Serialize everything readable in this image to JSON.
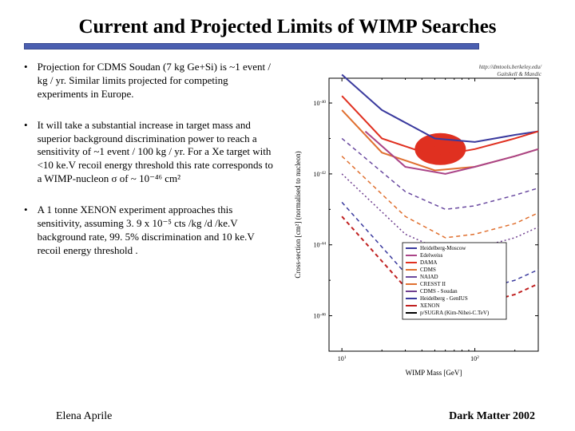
{
  "title": "Current and Projected Limits of WIMP Searches",
  "title_fontsize": 25,
  "underline_color": "#4b5fb0",
  "bullets": [
    {
      "text": "Projection for CDMS Soudan (7 kg Ge+Si) is ~1 event / kg / yr.  Similar limits projected for competing experiments in Europe."
    },
    {
      "text": "It will take a substantial increase in target mass and superior background discrimination power to reach a sensitivity of ~1 event / 100 kg / yr. For a Xe target with <10 ke.V recoil energy threshold this rate corresponds to a WIMP-nucleon σ of ~ 10⁻⁴⁶ cm²"
    },
    {
      "text": "A 1 tonne  XENON experiment approaches this sensitivity, assuming 3. 9 x 10⁻⁵ cts /kg /d /ke.V background rate,  99. 5% discrimination and 10 ke.V recoil energy threshold ."
    }
  ],
  "bullet_fontsize": 13,
  "footer_left": "Elena Aprile",
  "footer_right": "Dark Matter 2002",
  "chart": {
    "type": "line",
    "source_label": "http://dmtools.berkeley.edu/",
    "source_author": "Gaitskell & Mandic",
    "xlabel": "WIMP Mass  [GeV]",
    "ylabel": "Cross-section  [cm²]  (normalised to nucleon)",
    "xscale": "log",
    "yscale": "log",
    "xlim": [
      8,
      300
    ],
    "ylim": [
      1e-47,
      5e-40
    ],
    "xticks": [
      10,
      100
    ],
    "yticks_exp": [
      -40,
      -42,
      -44,
      -46
    ],
    "label_fontsize": 9,
    "tick_fontsize": 8,
    "background_color": "#ffffff",
    "border_color": "#000000",
    "legend": {
      "position": "lower-right",
      "items": [
        {
          "label": "Heidelberg-Moscow",
          "color": "#3a3a9e"
        },
        {
          "label": "Edelweiss",
          "color": "#aa4488"
        },
        {
          "label": "DAMA",
          "color": "#e03020"
        },
        {
          "label": "CDMS",
          "color": "#e07030"
        },
        {
          "label": "NAIAD",
          "color": "#6a4aa0"
        },
        {
          "label": "CRESST II",
          "color": "#e07030"
        },
        {
          "label": "CDMS - Soudan",
          "color": "#704090"
        },
        {
          "label": "Heidelberg - GenIUS",
          "color": "#3a3a9e"
        },
        {
          "label": "XENON",
          "color": "#c02020"
        },
        {
          "label": "p/SUGRA (Kim-Nihei-C.TeV)",
          "color": "#000000"
        }
      ],
      "box_border": "#000000",
      "font_size": 7
    },
    "allowed_region": {
      "color": "#e03020",
      "opacity": 1.0,
      "x_center": 55,
      "y_center_exp": -41.3,
      "note": "DAMA allowed region"
    },
    "curves": [
      {
        "name": "Heidelberg-Moscow",
        "color": "#3a3a9e",
        "style": "solid",
        "width": 2,
        "points_exp": [
          [
            10,
            -39.2
          ],
          [
            20,
            -40.2
          ],
          [
            50,
            -41.0
          ],
          [
            100,
            -41.1
          ],
          [
            200,
            -40.9
          ],
          [
            300,
            -40.8
          ]
        ]
      },
      {
        "name": "DAMA",
        "color": "#e03020",
        "style": "solid",
        "width": 2,
        "points_exp": [
          [
            10,
            -39.8
          ],
          [
            20,
            -41.0
          ],
          [
            50,
            -41.5
          ],
          [
            100,
            -41.3
          ],
          [
            200,
            -41.0
          ],
          [
            300,
            -40.8
          ]
        ]
      },
      {
        "name": "CDMS",
        "color": "#e07030",
        "style": "solid",
        "width": 2,
        "points_exp": [
          [
            10,
            -40.2
          ],
          [
            20,
            -41.4
          ],
          [
            50,
            -41.9
          ],
          [
            100,
            -41.8
          ],
          [
            200,
            -41.5
          ],
          [
            300,
            -41.3
          ]
        ]
      },
      {
        "name": "Edelweiss",
        "color": "#aa4488",
        "style": "solid",
        "width": 2,
        "points_exp": [
          [
            15,
            -40.8
          ],
          [
            30,
            -41.8
          ],
          [
            60,
            -42.0
          ],
          [
            100,
            -41.8
          ],
          [
            200,
            -41.5
          ],
          [
            300,
            -41.3
          ]
        ]
      },
      {
        "name": "NAIAD",
        "color": "#6a4aa0",
        "style": "dash",
        "width": 1.5,
        "points_exp": [
          [
            10,
            -41.0
          ],
          [
            30,
            -42.5
          ],
          [
            60,
            -43.0
          ],
          [
            100,
            -42.9
          ],
          [
            200,
            -42.6
          ],
          [
            300,
            -42.4
          ]
        ]
      },
      {
        "name": "CRESST II",
        "color": "#e07030",
        "style": "dash",
        "width": 1.5,
        "points_exp": [
          [
            10,
            -41.5
          ],
          [
            30,
            -43.2
          ],
          [
            60,
            -43.8
          ],
          [
            100,
            -43.7
          ],
          [
            200,
            -43.4
          ],
          [
            300,
            -43.1
          ]
        ]
      },
      {
        "name": "CDMS-Soudan",
        "color": "#704090",
        "style": "dotted",
        "width": 1.5,
        "points_exp": [
          [
            10,
            -42.0
          ],
          [
            30,
            -43.7
          ],
          [
            60,
            -44.2
          ],
          [
            100,
            -44.1
          ],
          [
            200,
            -43.8
          ],
          [
            300,
            -43.5
          ]
        ]
      },
      {
        "name": "Heidelberg-GenIUS",
        "color": "#3a3a9e",
        "style": "dash",
        "width": 1.5,
        "points_exp": [
          [
            10,
            -42.8
          ],
          [
            30,
            -44.8
          ],
          [
            60,
            -45.4
          ],
          [
            100,
            -45.3
          ],
          [
            200,
            -45.0
          ],
          [
            300,
            -44.7
          ]
        ]
      },
      {
        "name": "XENON",
        "color": "#c02020",
        "style": "dash",
        "width": 2,
        "points_exp": [
          [
            10,
            -43.2
          ],
          [
            30,
            -45.2
          ],
          [
            60,
            -45.8
          ],
          [
            100,
            -45.7
          ],
          [
            200,
            -45.4
          ],
          [
            300,
            -45.1
          ]
        ]
      }
    ]
  }
}
